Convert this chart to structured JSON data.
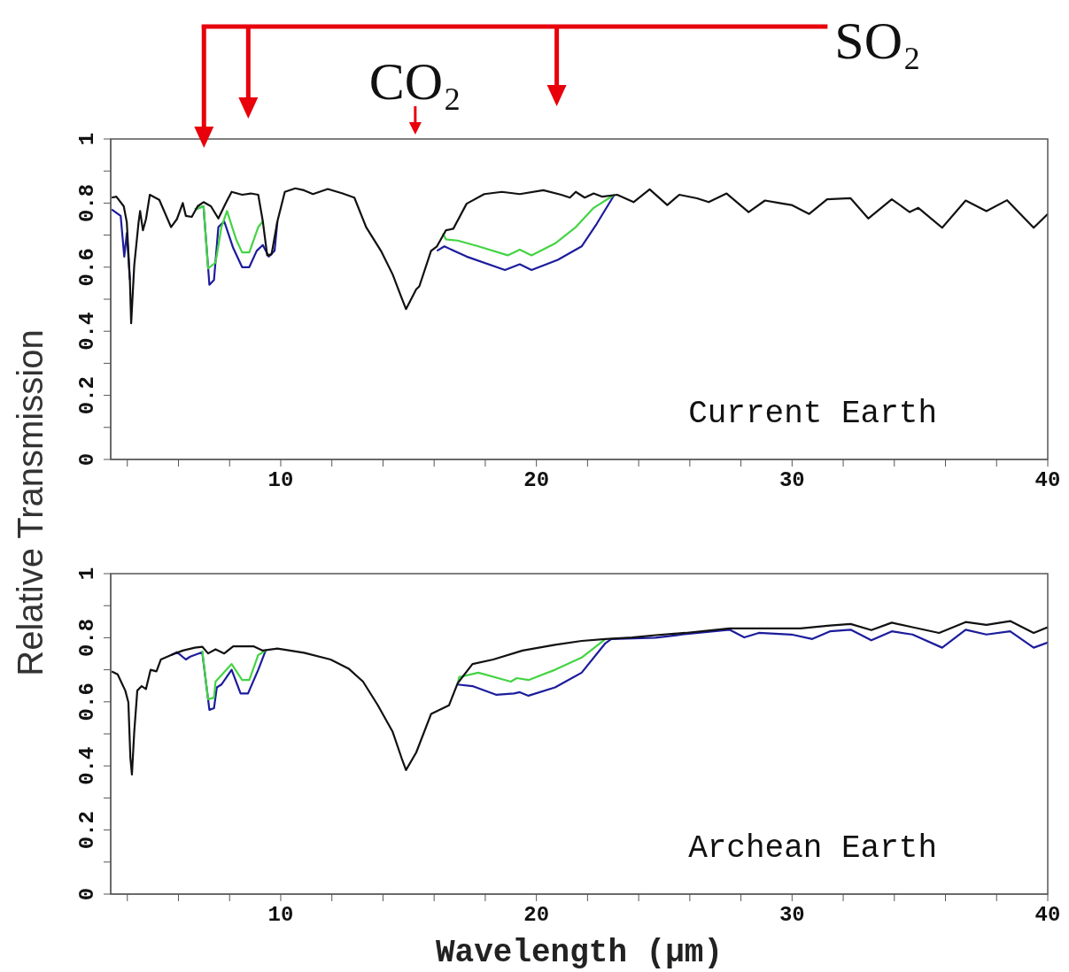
{
  "chart_data": [
    {
      "type": "line",
      "title": "Current Earth",
      "ylabel": "Relative Transmission",
      "annotations": [
        "SO₂",
        "CO₂"
      ],
      "xlim": [
        3.35,
        40
      ],
      "xticks": [
        {
          "value": 4,
          "label": null
        },
        {
          "value": 6,
          "label": null
        },
        {
          "value": 8,
          "label": null
        },
        10,
        {
          "value": 12,
          "label": null
        },
        {
          "value": 14,
          "label": null
        },
        {
          "value": 16,
          "label": null
        },
        {
          "value": 18,
          "label": null
        },
        20,
        {
          "value": 22,
          "label": null
        },
        {
          "value": 24,
          "label": null
        },
        {
          "value": 26,
          "label": null
        },
        {
          "value": 28,
          "label": null
        },
        30,
        {
          "value": 32,
          "label": null
        },
        {
          "value": 34,
          "label": null
        },
        {
          "value": 36,
          "label": null
        },
        {
          "value": 38,
          "label": null
        },
        40
      ],
      "ylim": [
        0,
        1
      ],
      "yticks": [
        0,
        {
          "value": 0.1,
          "label": null
        },
        0.2,
        {
          "value": 0.3,
          "label": null
        },
        0.4,
        {
          "value": 0.5,
          "label": null
        },
        0.6,
        {
          "value": 0.7,
          "label": null
        },
        0.8,
        {
          "value": 0.9,
          "label": null
        },
        1
      ],
      "series": [
        {
          "color": "#1c1c9c",
          "x": [
            3.39,
            3.74,
            3.88,
            3.98,
            4.1,
            5,
            6.64,
            6.98,
            7.21,
            7.39,
            7.56,
            7.79,
            8.14,
            8.49,
            8.77,
            9.06,
            9.3,
            9.53,
            9.76,
            9.87,
            13,
            16.11,
            16.4,
            17.27,
            18.77,
            19.35,
            19.81,
            20.84,
            21.77,
            22.35,
            23.05
          ],
          "values": [
            0.78,
            0.76,
            0.633,
            0.706,
            0.56,
            null,
            0.78,
            0.79,
            0.545,
            0.56,
            0.725,
            0.743,
            0.66,
            0.6,
            0.6,
            0.651,
            0.669,
            0.633,
            0.651,
            0.743,
            null,
            0.651,
            0.665,
            0.633,
            0.591,
            0.609,
            0.591,
            0.623,
            0.665,
            0.734,
            0.826
          ]
        },
        {
          "color": "#44d444",
          "x": [
            6.64,
            6.98,
            7.16,
            7.45,
            7.68,
            7.9,
            8.25,
            8.49,
            8.77,
            9.12,
            9.3,
            13,
            16.34,
            16.46,
            16.92,
            17.73,
            18.88,
            19.35,
            19.81,
            20.73,
            21.54,
            22.24,
            23.05
          ],
          "values": [
            0.78,
            0.79,
            0.596,
            0.614,
            0.725,
            0.775,
            0.688,
            0.646,
            0.646,
            0.725,
            0.743,
            null,
            0.706,
            0.687,
            0.683,
            0.665,
            0.637,
            0.655,
            0.637,
            0.674,
            0.725,
            0.785,
            0.826
          ]
        },
        {
          "color": "#111111",
          "x": [
            3.39,
            3.57,
            3.86,
            3.98,
            4.1,
            4.15,
            4.27,
            4.44,
            4.5,
            4.61,
            4.73,
            4.88,
            5.25,
            5.71,
            5.94,
            6.17,
            6.29,
            6.52,
            6.75,
            6.98,
            7.27,
            7.56,
            7.85,
            8.08,
            8.49,
            8.83,
            9.12,
            9.3,
            9.47,
            9.64,
            9.87,
            10.16,
            10.57,
            10.91,
            11.26,
            11.84,
            12.42,
            12.88,
            13.34,
            13.92,
            14.38,
            14.73,
            14.9,
            15.3,
            15.42,
            15.88,
            16.11,
            16.46,
            16.75,
            17.27,
            17.96,
            18.65,
            19.35,
            20.27,
            20.97,
            21.31,
            21.54,
            21.89,
            22.24,
            22.58,
            23.16,
            23.8,
            24.43,
            25.12,
            25.59,
            26.28,
            26.74,
            27.44,
            28.3,
            28.94,
            29.51,
            29.98,
            30.67,
            31.37,
            32.29,
            32.98,
            33.9,
            34.6,
            34.94,
            35.87,
            36.79,
            37.6,
            38.41,
            39.45,
            40
          ],
          "values": [
            0.817,
            0.82,
            0.79,
            0.74,
            0.56,
            0.425,
            0.605,
            0.74,
            0.775,
            0.715,
            0.75,
            0.826,
            0.81,
            0.725,
            0.75,
            0.8,
            0.76,
            0.757,
            0.79,
            0.803,
            0.79,
            0.752,
            0.8,
            0.835,
            0.826,
            0.83,
            0.826,
            0.743,
            0.637,
            0.64,
            0.743,
            0.835,
            0.846,
            0.84,
            0.828,
            0.844,
            0.83,
            0.817,
            0.725,
            0.651,
            0.577,
            0.504,
            0.469,
            0.531,
            0.54,
            0.651,
            0.665,
            0.715,
            0.72,
            0.798,
            0.828,
            0.835,
            0.828,
            0.84,
            0.826,
            0.817,
            0.835,
            0.817,
            0.83,
            0.82,
            0.826,
            0.803,
            0.843,
            0.794,
            0.826,
            0.815,
            0.803,
            0.83,
            0.772,
            0.808,
            0.8,
            0.794,
            0.766,
            0.812,
            0.815,
            0.752,
            0.812,
            0.772,
            0.785,
            0.723,
            0.808,
            0.775,
            0.809,
            0.723,
            0.766
          ]
        }
      ]
    },
    {
      "type": "line",
      "title": "Archean Earth",
      "xlabel": "Wavelength (μm)",
      "xlim": [
        3.35,
        40
      ],
      "xticks": [
        {
          "value": 4,
          "label": null
        },
        {
          "value": 6,
          "label": null
        },
        {
          "value": 8,
          "label": null
        },
        10,
        {
          "value": 12,
          "label": null
        },
        {
          "value": 14,
          "label": null
        },
        {
          "value": 16,
          "label": null
        },
        {
          "value": 18,
          "label": null
        },
        20,
        {
          "value": 22,
          "label": null
        },
        {
          "value": 24,
          "label": null
        },
        {
          "value": 26,
          "label": null
        },
        {
          "value": 28,
          "label": null
        },
        30,
        {
          "value": 32,
          "label": null
        },
        {
          "value": 34,
          "label": null
        },
        {
          "value": 36,
          "label": null
        },
        {
          "value": 38,
          "label": null
        },
        40
      ],
      "ylim": [
        0,
        1
      ],
      "yticks": [
        0,
        {
          "value": 0.1,
          "label": null
        },
        0.2,
        {
          "value": 0.3,
          "label": null
        },
        0.4,
        {
          "value": 0.5,
          "label": null
        },
        0.6,
        {
          "value": 0.7,
          "label": null
        },
        0.8,
        {
          "value": 0.9,
          "label": null
        },
        1
      ],
      "series": [
        {
          "color": "#1c1c9c",
          "x": [
            5.71,
            5.94,
            6.29,
            6.46,
            6.93,
            7.21,
            7.39,
            7.5,
            7.68,
            8.08,
            8.43,
            8.72,
            9.12,
            9.41,
            13,
            16.92,
            17.5,
            18.42,
            19.12,
            19.35,
            19.69,
            20.73,
            21.77,
            22.7,
            22.93,
            24.66,
            25.7,
            27.55,
            28.13,
            28.7,
            29.98,
            30.79,
            31.48,
            32.29,
            33.1,
            33.9,
            34.71,
            35.87,
            36.79,
            37.6,
            38.53,
            39.45,
            40
          ],
          "values": [
            0.746,
            0.755,
            0.732,
            0.741,
            0.755,
            0.575,
            0.58,
            0.645,
            0.654,
            0.7,
            0.626,
            0.626,
            0.7,
            0.76,
            null,
            0.654,
            0.649,
            0.622,
            0.626,
            0.63,
            0.619,
            0.645,
            0.691,
            0.783,
            0.796,
            0.8,
            0.81,
            0.825,
            0.801,
            0.815,
            0.81,
            0.796,
            0.82,
            0.825,
            0.792,
            0.82,
            0.81,
            0.769,
            0.825,
            0.81,
            0.82,
            0.769,
            0.785
          ]
        },
        {
          "color": "#44d444",
          "x": [
            6.93,
            7.16,
            7.39,
            7.45,
            8.08,
            8.49,
            8.77,
            9.12,
            9.41,
            13,
            16.92,
            16.98,
            17.73,
            19.0,
            19.23,
            19.69,
            20.73,
            21.77,
            22.7
          ],
          "values": [
            0.76,
            0.608,
            0.613,
            0.663,
            0.718,
            0.668,
            0.668,
            0.746,
            0.76,
            null,
            0.658,
            0.677,
            0.691,
            0.663,
            0.674,
            0.668,
            0.7,
            0.738,
            0.796
          ]
        },
        {
          "color": "#111111",
          "x": [
            3.39,
            3.62,
            3.92,
            4.04,
            4.12,
            4.18,
            4.27,
            4.39,
            4.56,
            4.73,
            4.91,
            5.14,
            5.31,
            5.71,
            6.17,
            6.64,
            6.93,
            7.16,
            7.45,
            7.79,
            8.14,
            8.95,
            9.3,
            9.87,
            10.91,
            11.95,
            12.65,
            13.22,
            13.8,
            14.38,
            14.73,
            14.9,
            15.3,
            15.88,
            16.58,
            16.92,
            17.5,
            18.31,
            19.46,
            20.73,
            21.77,
            22.7,
            23.74,
            24.66,
            25.82,
            27.55,
            29.17,
            30.32,
            31.48,
            32.29,
            33.1,
            33.9,
            34.71,
            35.75,
            36.79,
            37.6,
            38.53,
            39.45,
            40
          ],
          "values": [
            0.695,
            0.686,
            0.635,
            0.599,
            0.424,
            0.373,
            0.506,
            0.635,
            0.649,
            0.64,
            0.7,
            0.695,
            0.732,
            0.746,
            0.76,
            0.769,
            0.772,
            0.751,
            0.764,
            0.751,
            0.773,
            0.773,
            0.76,
            0.766,
            0.753,
            0.732,
            0.704,
            0.663,
            0.589,
            0.506,
            0.424,
            0.387,
            0.442,
            0.562,
            0.589,
            0.658,
            0.718,
            0.732,
            0.76,
            0.778,
            0.79,
            0.796,
            0.801,
            0.808,
            0.815,
            0.829,
            0.829,
            0.829,
            0.838,
            0.843,
            0.824,
            0.847,
            0.833,
            0.815,
            0.849,
            0.84,
            0.852,
            0.815,
            0.833
          ]
        }
      ]
    }
  ]
}
